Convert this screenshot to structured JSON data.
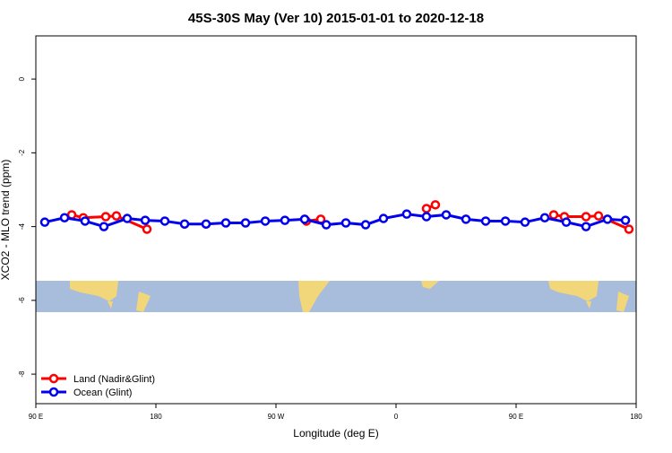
{
  "chart_data": {
    "type": "line",
    "title": "45S-30S May (Ver 10)   2015-01-01 to 2020-12-18",
    "x_label": "Longitude (deg E)",
    "y_label": "XCO2 - MLO trend (ppm)",
    "xlim": [
      90,
      540
    ],
    "ylim": [
      -8.8,
      1.17
    ],
    "xticks": [
      {
        "value": 90,
        "label": "90 E"
      },
      {
        "value": 180,
        "label": "180"
      },
      {
        "value": 270,
        "label": "90 W"
      },
      {
        "value": 360,
        "label": "0"
      },
      {
        "value": 450,
        "label": "90 E"
      },
      {
        "value": 540,
        "label": "180"
      }
    ],
    "yticks": [
      0,
      -2,
      -4,
      -6,
      -8
    ],
    "legend": "bottom-left",
    "series": [
      {
        "name": "Land (Nadir&Glint)",
        "color": "#ff0000",
        "x": [
          116.9,
          125.6,
          142.4,
          150.4,
          173.3,
          null,
          292.8,
          303.6,
          null,
          382.8,
          389.5,
          null,
          478.2,
          486.2,
          502.4,
          511.8,
          534.6
        ],
        "values": [
          -3.68,
          -3.76,
          -3.73,
          -3.71,
          -4.07,
          null,
          -3.85,
          -3.8,
          null,
          -3.51,
          -3.41,
          null,
          -3.68,
          -3.73,
          -3.73,
          -3.71,
          -4.07
        ]
      },
      {
        "name": "Ocean (Glint)",
        "color": "#0000ee",
        "x": [
          96.7,
          111.5,
          126.9,
          141,
          158.5,
          172,
          186.7,
          201.5,
          217.6,
          232.4,
          247.2,
          262,
          276.7,
          291.5,
          307.7,
          322.4,
          337.2,
          350.6,
          368,
          382.8,
          397.6,
          412.4,
          427.2,
          442,
          456.7,
          471.5,
          487.6,
          502.4,
          518.5,
          532
        ],
        "values": [
          -3.88,
          -3.76,
          -3.85,
          -4.0,
          -3.78,
          -3.83,
          -3.85,
          -3.93,
          -3.93,
          -3.9,
          -3.9,
          -3.85,
          -3.83,
          -3.8,
          -3.95,
          -3.9,
          -3.95,
          -3.78,
          -3.66,
          -3.73,
          -3.68,
          -3.8,
          -3.85,
          -3.85,
          -3.88,
          -3.76,
          -3.88,
          -4.0,
          -3.8,
          -3.83
        ]
      }
    ]
  }
}
